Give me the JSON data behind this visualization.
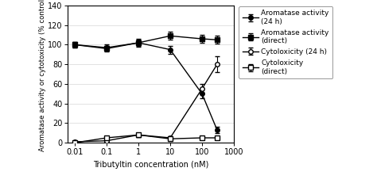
{
  "x_values": [
    0.01,
    0.1,
    1,
    10,
    100,
    300
  ],
  "aromatase_24h": [
    100,
    97,
    102,
    95,
    50,
    13
  ],
  "aromatase_24h_err": [
    3,
    3,
    4,
    4,
    5,
    3
  ],
  "aromatase_direct": [
    100,
    96,
    102,
    109,
    106,
    105
  ],
  "aromatase_direct_err": [
    3,
    3,
    3,
    4,
    4,
    4
  ],
  "cytotox_24h": [
    1,
    2,
    8,
    5,
    55,
    80
  ],
  "cytotox_24h_err": [
    1,
    1,
    2,
    2,
    5,
    8
  ],
  "cytotox_direct": [
    0,
    5,
    8,
    4,
    5,
    5
  ],
  "cytotox_direct_err": [
    1,
    2,
    2,
    2,
    2,
    2
  ],
  "xlabel": "Tributyltin concentration (nM)",
  "ylabel": "Aromatase activity or cytotoxicity (% control)",
  "ylim": [
    0,
    140
  ],
  "yticks": [
    0,
    20,
    40,
    60,
    80,
    100,
    120,
    140
  ],
  "xlim_log": [
    0.006,
    1000
  ],
  "xtick_labels": [
    "0.01",
    "0.1",
    "1",
    "10",
    "100",
    "1000"
  ],
  "xtick_vals": [
    0.01,
    0.1,
    1,
    10,
    100,
    1000
  ],
  "legend_labels": [
    "Aromatase activity\n(24 h)",
    "Aromatase activity\n(direct)",
    "Cytoloxicity (24 h)",
    "Cytoloxicity\n(direct)"
  ],
  "line_color": "#000000",
  "bg_color": "#ffffff",
  "grid_color": "#cccccc",
  "markersize": 4,
  "linewidth": 1.0,
  "capsize": 2,
  "elinewidth": 0.8,
  "legend_fontsize": 6.5,
  "tick_labelsize": 7,
  "xlabel_fontsize": 7,
  "ylabel_fontsize": 6.2
}
